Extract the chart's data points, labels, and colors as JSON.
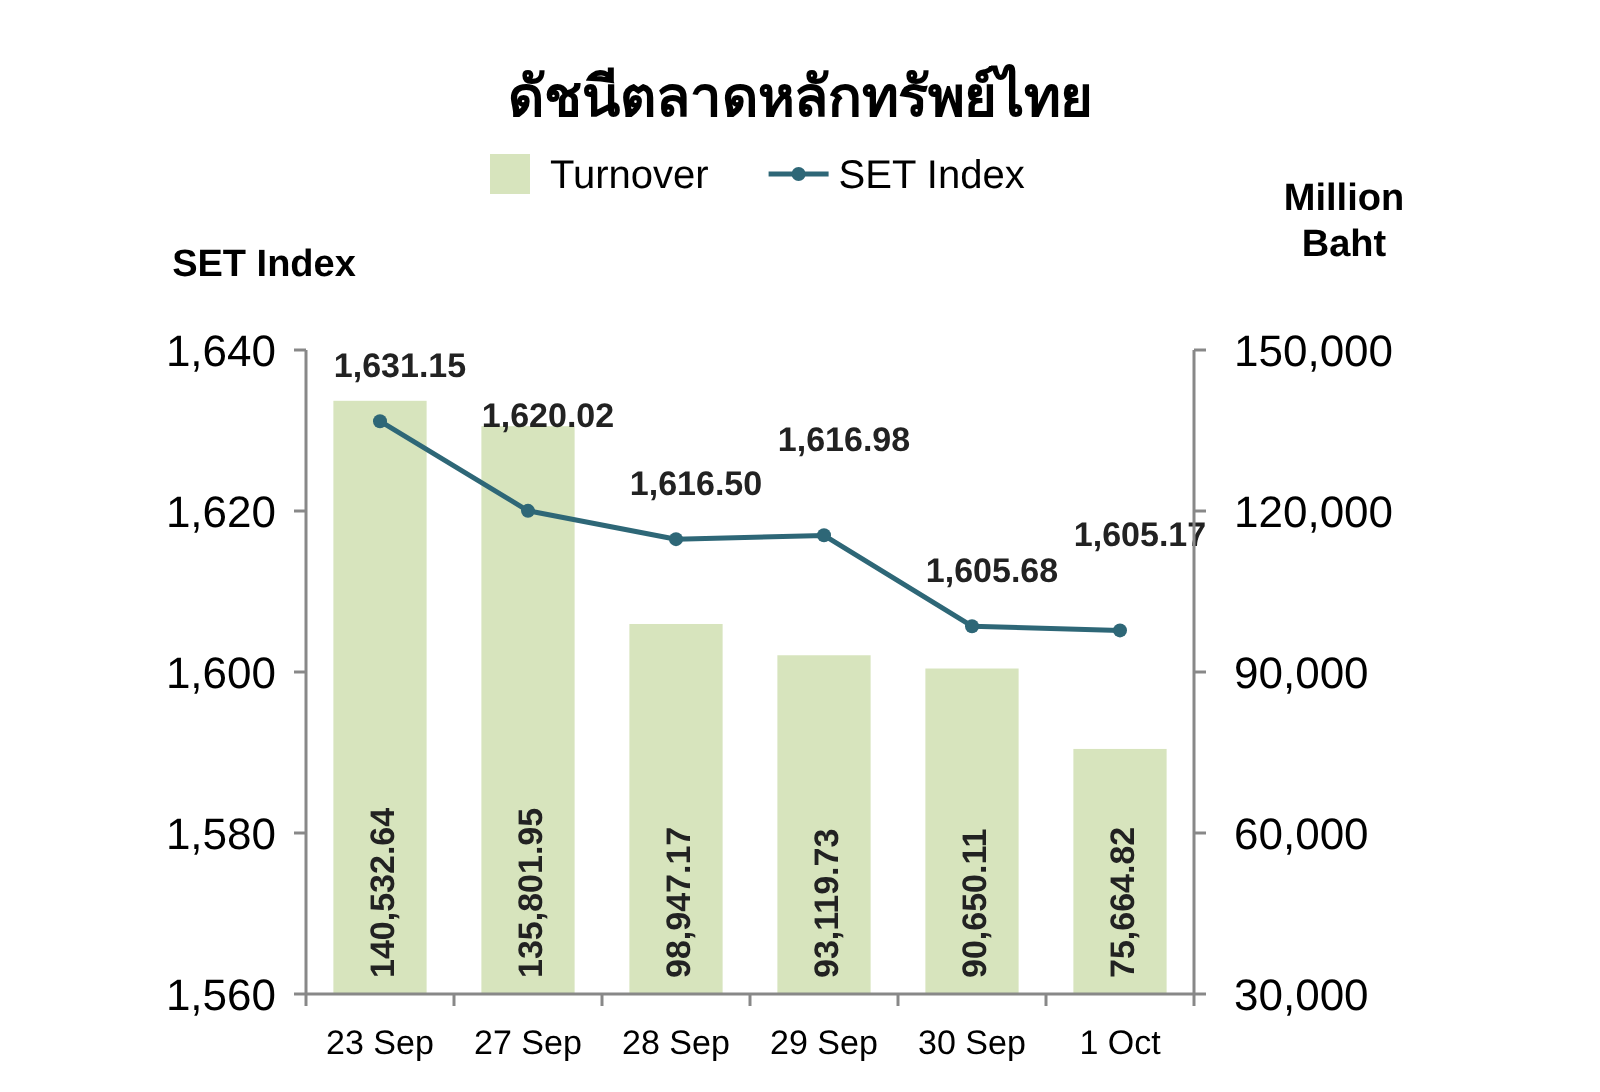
{
  "chart_data": {
    "type": "bar",
    "title": "ดัชนีตลาดหลักทรัพย์ไทย",
    "ylabel": "SET Index",
    "y2label": "Million Baht",
    "categories": [
      "23 Sep",
      "27 Sep",
      "28 Sep",
      "29 Sep",
      "30 Sep",
      "1 Oct"
    ],
    "series": [
      {
        "name": "Turnover",
        "axis": "y2",
        "color": "#d7e4bd",
        "values": [
          140532.64,
          135801.95,
          98947.17,
          93119.73,
          90650.11,
          75664.82
        ],
        "value_labels": [
          "140,532.64",
          "135,801.95",
          "98,947.17",
          "93,119.73",
          "90,650.11",
          "75,664.82"
        ]
      },
      {
        "name": "SET Index",
        "type": "line",
        "axis": "y",
        "color": "#2e6777",
        "marker": "circle",
        "values": [
          1631.15,
          1620.02,
          1616.5,
          1616.98,
          1605.68,
          1605.17
        ],
        "value_labels": [
          "1,631.15",
          "1,620.02",
          "1,616.50",
          "1,616.98",
          "1,605.68",
          "1,605.17"
        ]
      }
    ],
    "ylim": [
      1560,
      1640
    ],
    "yticks": [
      {
        "value": 1560,
        "label": "1,560"
      },
      {
        "value": 1580,
        "label": "1,580"
      },
      {
        "value": 1600,
        "label": "1,600"
      },
      {
        "value": 1620,
        "label": "1,620"
      },
      {
        "value": 1640,
        "label": "1,640"
      }
    ],
    "y2lim": [
      30000,
      150000
    ],
    "y2ticks": [
      {
        "value": 30000,
        "label": "30,000"
      },
      {
        "value": 60000,
        "label": "60,000"
      },
      {
        "value": 90000,
        "label": "90,000"
      },
      {
        "value": 120000,
        "label": "120,000"
      },
      {
        "value": 150000,
        "label": "150,000"
      }
    ],
    "legend": "top",
    "grid": false
  }
}
